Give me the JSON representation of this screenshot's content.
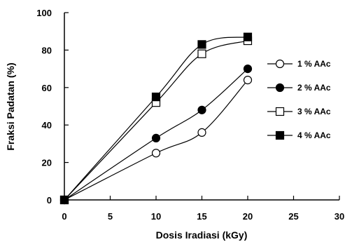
{
  "chart_data": {
    "type": "scatter",
    "xlabel": "Dosis Iradiasi (kGy)",
    "ylabel": "Fraksi Padatan (%)",
    "xlim": [
      0,
      30
    ],
    "ylim": [
      0,
      100
    ],
    "xticks": [
      0,
      5,
      10,
      15,
      20,
      25,
      30
    ],
    "yticks": [
      0,
      20,
      40,
      60,
      80,
      100
    ],
    "grid": false,
    "legend_position": "right",
    "series": [
      {
        "name": "1 % AAc",
        "marker": "circle-open",
        "x": [
          0,
          10,
          15,
          20
        ],
        "y": [
          0,
          25,
          36,
          64
        ]
      },
      {
        "name": "2 % AAc",
        "marker": "circle-filled",
        "x": [
          0,
          10,
          15,
          20
        ],
        "y": [
          0,
          33,
          48,
          70
        ]
      },
      {
        "name": "3 % AAc",
        "marker": "square-open",
        "x": [
          0,
          10,
          15,
          20
        ],
        "y": [
          0,
          52,
          78,
          85
        ]
      },
      {
        "name": "4 % AAc",
        "marker": "square-filled",
        "x": [
          0,
          10,
          15,
          20
        ],
        "y": [
          0,
          55,
          83,
          87
        ]
      }
    ]
  }
}
